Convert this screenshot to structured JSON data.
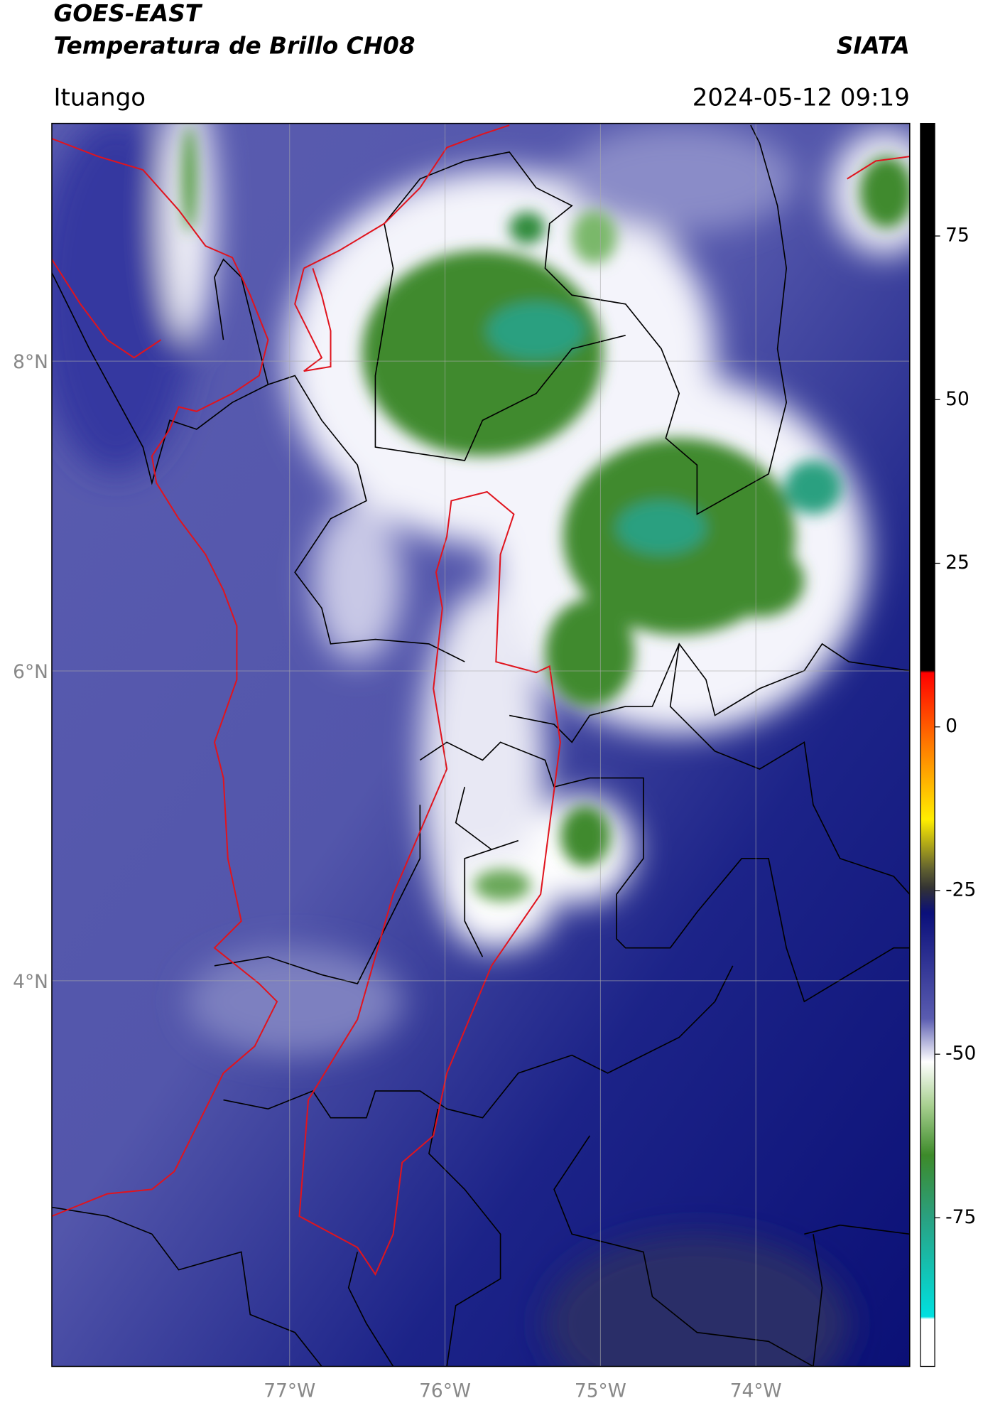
{
  "header": {
    "satellite": "GOES-EAST",
    "product": "Temperatura de Brillo CH08",
    "source": "SIATA",
    "region": "Ituango",
    "datetime": "2024-05-12 09:19"
  },
  "map": {
    "lat_ticks": [
      {
        "value": 8,
        "label": "8°N"
      },
      {
        "value": 6,
        "label": "6°N"
      },
      {
        "value": 4,
        "label": "4°N"
      }
    ],
    "lon_ticks": [
      {
        "value": -77,
        "label": "77°W"
      },
      {
        "value": -76,
        "label": "76°W"
      },
      {
        "value": -75,
        "label": "75°W"
      },
      {
        "value": -74,
        "label": "74°W"
      }
    ],
    "latlim": [
      1.51,
      9.535
    ],
    "lonlim": [
      -78.53,
      -73.01
    ],
    "grid": true
  },
  "colorbar": {
    "clim": [
      -97.7,
      92.2
    ],
    "ticks": [
      75,
      50,
      25,
      0,
      -25,
      -50,
      -75
    ]
  }
}
